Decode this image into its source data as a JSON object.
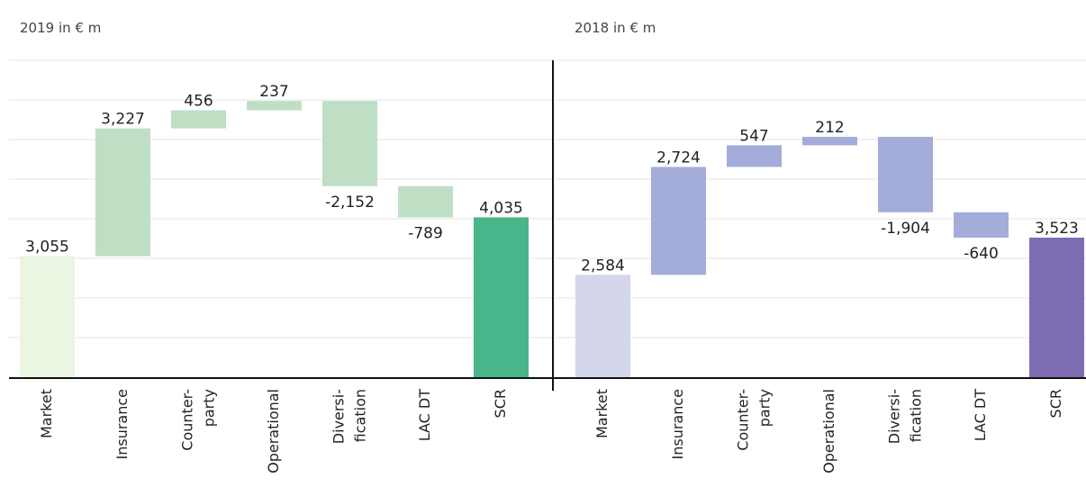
{
  "chart_data": [
    {
      "type": "waterfall",
      "title": "2019 in € m",
      "categories": [
        "Market",
        "Insurance",
        "Counter-\nparty",
        "Operational",
        "Diversi-\nfication",
        "LAC DT",
        "SCR"
      ],
      "values": [
        3055,
        3227,
        456,
        237,
        -2152,
        -789,
        4035
      ],
      "value_labels": [
        "3,055",
        "3,227",
        "456",
        "237",
        "-2,152",
        "-789",
        "4,035"
      ],
      "colors": [
        "#eaf5e2",
        "#bfdfc4",
        "#bfdfc4",
        "#bfdfc4",
        "#bfdfc4",
        "#bfdfc4",
        "#48b58a"
      ],
      "ylim": [
        0,
        8000
      ],
      "yticks": [
        0,
        1000,
        2000,
        3000,
        4000,
        5000,
        6000,
        7000,
        8000
      ],
      "grid": true
    },
    {
      "type": "waterfall",
      "title": "2018 in € m",
      "categories": [
        "Market",
        "Insurance",
        "Counter-\nparty",
        "Operational",
        "Diversi-\nfication",
        "LAC DT",
        "SCR"
      ],
      "values": [
        2584,
        2724,
        547,
        212,
        -1904,
        -640,
        3523
      ],
      "value_labels": [
        "2,584",
        "2,724",
        "547",
        "212",
        "-1,904",
        "-640",
        "3,523"
      ],
      "colors": [
        "#d4d6ec",
        "#a4acd9",
        "#a4acd9",
        "#a4acd9",
        "#a4acd9",
        "#a4acd9",
        "#7e6db3"
      ],
      "ylim": [
        0,
        8000
      ],
      "yticks": [
        0,
        1000,
        2000,
        3000,
        4000,
        5000,
        6000,
        7000,
        8000
      ],
      "grid": true
    }
  ]
}
